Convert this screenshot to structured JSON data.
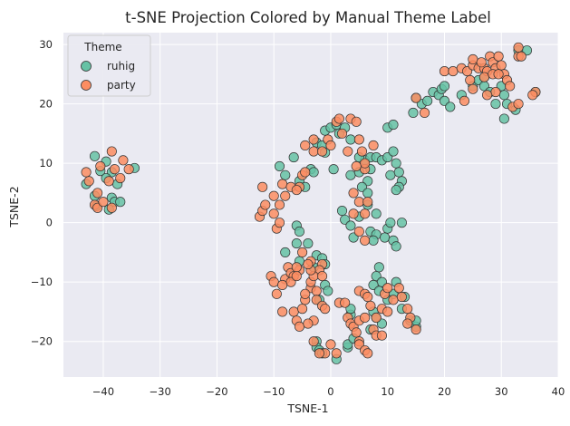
{
  "chart_data": {
    "type": "scatter",
    "title": "t-SNE Projection Colored by Manual Theme Label",
    "xlabel": "TSNE-1",
    "ylabel": "TSNE-2",
    "xlim": [
      -47,
      40
    ],
    "ylim": [
      -26,
      32
    ],
    "xticks": [
      -40,
      -30,
      -20,
      -10,
      0,
      10,
      20,
      30,
      40
    ],
    "yticks": [
      -20,
      -10,
      0,
      10,
      20,
      30
    ],
    "grid": true,
    "legend": {
      "title": "Theme",
      "position": "top-left"
    },
    "series": [
      {
        "name": "ruhig",
        "color": "#66c2a5",
        "points": [
          [
            -41.5,
            11.2
          ],
          [
            -39.5,
            10.3
          ],
          [
            -40.5,
            8.7
          ],
          [
            -38.5,
            8.5
          ],
          [
            -39.5,
            7.5
          ],
          [
            -37.5,
            6.5
          ],
          [
            -34.5,
            9.2
          ],
          [
            -38.5,
            4.2
          ],
          [
            -38,
            3.5
          ],
          [
            -37,
            3.5
          ],
          [
            -41.2,
            2.8
          ],
          [
            -41.5,
            4.5
          ],
          [
            -43,
            6.5
          ],
          [
            -39,
            2.2
          ],
          [
            -9,
            9.5
          ],
          [
            -8,
            8
          ],
          [
            -6.5,
            11
          ],
          [
            -5.5,
            7
          ],
          [
            -4.5,
            6
          ],
          [
            -3.5,
            9
          ],
          [
            -3,
            8.5
          ],
          [
            -2.5,
            13.5
          ],
          [
            -1.5,
            13
          ],
          [
            -1,
            15.5
          ],
          [
            0,
            16
          ],
          [
            1,
            16.5
          ],
          [
            -1,
            11.8
          ],
          [
            0.5,
            9
          ],
          [
            1.5,
            15
          ],
          [
            2.5,
            16
          ],
          [
            3.5,
            14
          ],
          [
            -6,
            -0.5
          ],
          [
            -5.5,
            -1.5
          ],
          [
            -6,
            -3.5
          ],
          [
            -5.5,
            -6.5
          ],
          [
            -4,
            -3.5
          ],
          [
            -8,
            -5
          ],
          [
            -2.5,
            -5.5
          ],
          [
            -1.5,
            -6
          ],
          [
            -1,
            -7
          ],
          [
            -3,
            -7.5
          ],
          [
            -1,
            -10.5
          ],
          [
            -0.5,
            -11.5
          ],
          [
            -2,
            -13
          ],
          [
            -2.5,
            -20
          ],
          [
            -2.5,
            -21
          ],
          [
            -2,
            -21.5
          ],
          [
            -1.5,
            -22
          ],
          [
            1,
            -23
          ],
          [
            3,
            -21
          ],
          [
            3,
            -20.5
          ],
          [
            4,
            -19.5
          ],
          [
            3.5,
            -15.5
          ],
          [
            3.5,
            -14.5
          ],
          [
            2,
            2
          ],
          [
            2.5,
            0.5
          ],
          [
            3.5,
            -0.5
          ],
          [
            4,
            -2.5
          ],
          [
            3.5,
            8
          ],
          [
            5,
            8.5
          ],
          [
            6,
            10.5
          ],
          [
            7,
            9
          ],
          [
            6.5,
            7
          ],
          [
            5.5,
            6
          ],
          [
            6.5,
            5
          ],
          [
            6.5,
            3
          ],
          [
            5,
            1
          ],
          [
            5,
            11
          ],
          [
            7,
            11
          ],
          [
            8,
            11
          ],
          [
            9,
            10.5
          ],
          [
            10,
            11
          ],
          [
            11,
            12
          ],
          [
            10.5,
            8
          ],
          [
            11.5,
            10
          ],
          [
            12,
            8.5
          ],
          [
            12.5,
            7
          ],
          [
            12,
            6
          ],
          [
            11.5,
            5.5
          ],
          [
            10,
            16
          ],
          [
            11,
            16.5
          ],
          [
            8,
            1.5
          ],
          [
            7,
            -1.5
          ],
          [
            8,
            -2
          ],
          [
            7.5,
            -3
          ],
          [
            9.5,
            -2.5
          ],
          [
            10,
            -1
          ],
          [
            10.5,
            0
          ],
          [
            11,
            -3
          ],
          [
            11.5,
            -4
          ],
          [
            12.5,
            0
          ],
          [
            8.5,
            -7.5
          ],
          [
            8,
            -9
          ],
          [
            9,
            -10
          ],
          [
            7.5,
            -10.5
          ],
          [
            8.5,
            -11.5
          ],
          [
            11,
            -12
          ],
          [
            11.5,
            -10
          ],
          [
            13,
            -12.5
          ],
          [
            12.5,
            -14.5
          ],
          [
            14,
            -16.5
          ],
          [
            15,
            -17.5
          ],
          [
            15,
            -16.5
          ],
          [
            10,
            -13
          ],
          [
            7.5,
            -15
          ],
          [
            8,
            -16
          ],
          [
            9,
            -17
          ],
          [
            7,
            -18
          ],
          [
            14.5,
            18.5
          ],
          [
            15,
            21
          ],
          [
            16,
            20
          ],
          [
            17,
            20.5
          ],
          [
            18,
            22
          ],
          [
            19,
            21.5
          ],
          [
            19.5,
            22.5
          ],
          [
            20,
            23
          ],
          [
            20,
            20.5
          ],
          [
            21,
            19.5
          ],
          [
            23,
            21.5
          ],
          [
            25,
            23
          ],
          [
            26,
            24
          ],
          [
            27,
            24.5
          ],
          [
            27,
            23
          ],
          [
            28,
            22
          ],
          [
            29,
            20
          ],
          [
            30.5,
            17.5
          ],
          [
            30.5,
            21.5
          ],
          [
            30,
            23
          ],
          [
            31,
            20
          ],
          [
            32.5,
            19
          ],
          [
            33,
            29
          ],
          [
            34.5,
            29
          ],
          [
            36,
            22
          ]
        ]
      },
      {
        "name": "party",
        "color": "#fc8d62",
        "points": [
          [
            -43,
            8.5
          ],
          [
            -42.5,
            7
          ],
          [
            -40.5,
            9.5
          ],
          [
            -38.5,
            12
          ],
          [
            -38,
            9
          ],
          [
            -36.5,
            10.5
          ],
          [
            -35.5,
            9
          ],
          [
            -37,
            7.5
          ],
          [
            -39,
            7
          ],
          [
            -41,
            5
          ],
          [
            -41.5,
            3
          ],
          [
            -41,
            2.5
          ],
          [
            -40,
            3.5
          ],
          [
            -38.5,
            2.5
          ],
          [
            -12,
            6
          ],
          [
            -10,
            4.5
          ],
          [
            -10,
            1.5
          ],
          [
            -9,
            3
          ],
          [
            -8.5,
            6.5
          ],
          [
            -8,
            4.5
          ],
          [
            -7,
            6
          ],
          [
            -5.5,
            6
          ],
          [
            -6,
            5.5
          ],
          [
            -5,
            8
          ],
          [
            -4.5,
            8.5
          ],
          [
            -3,
            12
          ],
          [
            -4.5,
            13
          ],
          [
            -3,
            14
          ],
          [
            -1.5,
            12
          ],
          [
            -0.5,
            14
          ],
          [
            0,
            13
          ],
          [
            1,
            17
          ],
          [
            1.5,
            17.5
          ],
          [
            2,
            15
          ],
          [
            3,
            12
          ],
          [
            3.5,
            17.5
          ],
          [
            4.5,
            17
          ],
          [
            5,
            14
          ],
          [
            5.5,
            12
          ],
          [
            6,
            9
          ],
          [
            6,
            10
          ],
          [
            4.5,
            9.5
          ],
          [
            4,
            5
          ],
          [
            5,
            3.5
          ],
          [
            4,
            1.5
          ],
          [
            6.5,
            3.5
          ],
          [
            6,
            1.5
          ],
          [
            5,
            -1.5
          ],
          [
            6,
            -3
          ],
          [
            7.5,
            13
          ],
          [
            -12.5,
            1
          ],
          [
            -12,
            2
          ],
          [
            -11.5,
            3
          ],
          [
            -9.5,
            -1
          ],
          [
            -9,
            0
          ],
          [
            -10.5,
            -9
          ],
          [
            -10,
            -10
          ],
          [
            -9.5,
            -12
          ],
          [
            -8,
            -9.5
          ],
          [
            -7.5,
            -7.5
          ],
          [
            -7,
            -8.5
          ],
          [
            -6.5,
            -9
          ],
          [
            -7,
            -10
          ],
          [
            -8.5,
            -10.5
          ],
          [
            -8.5,
            -15
          ],
          [
            -6.5,
            -15
          ],
          [
            -6,
            -16.5
          ],
          [
            -5.5,
            -17.5
          ],
          [
            -5,
            -14.5
          ],
          [
            -4.5,
            -13
          ],
          [
            -3.5,
            -11
          ],
          [
            -3.5,
            -10
          ],
          [
            -4.5,
            -12
          ],
          [
            -2.5,
            -11.5
          ],
          [
            -2.5,
            -13
          ],
          [
            -1.5,
            -14
          ],
          [
            -1,
            -14.5
          ],
          [
            -3,
            -16.5
          ],
          [
            -4,
            -17
          ],
          [
            -1,
            -22
          ],
          [
            -2,
            -22
          ],
          [
            -3,
            -20
          ],
          [
            0,
            -20.5
          ],
          [
            1,
            -22
          ],
          [
            1.5,
            -13.5
          ],
          [
            2.5,
            -13.5
          ],
          [
            3,
            -16
          ],
          [
            3.5,
            -17
          ],
          [
            4,
            -17.5
          ],
          [
            4.5,
            -18.5
          ],
          [
            5,
            -20
          ],
          [
            5,
            -20.5
          ],
          [
            6,
            -21.5
          ],
          [
            5,
            -11.5
          ],
          [
            6,
            -12
          ],
          [
            6.5,
            -12.5
          ],
          [
            7,
            -14
          ],
          [
            8,
            -16
          ],
          [
            7.5,
            -18
          ],
          [
            8,
            -19
          ],
          [
            9,
            -19
          ],
          [
            6.5,
            -22
          ],
          [
            9,
            -14.5
          ],
          [
            9.5,
            -12
          ],
          [
            10,
            -15
          ],
          [
            11,
            -13
          ],
          [
            10,
            -11
          ],
          [
            12,
            -11
          ],
          [
            12.5,
            -12.5
          ],
          [
            13.5,
            -14.5
          ],
          [
            14,
            -16
          ],
          [
            15,
            -18
          ],
          [
            13.5,
            -17
          ],
          [
            5,
            -16.5
          ],
          [
            6,
            -16
          ],
          [
            -1.5,
            -7
          ],
          [
            -2,
            -8
          ],
          [
            -3,
            -9
          ],
          [
            -1.5,
            -9
          ],
          [
            -3.5,
            -8
          ],
          [
            -5.5,
            -8
          ],
          [
            -3.5,
            -6.5
          ],
          [
            -4,
            -7
          ],
          [
            -5,
            -5
          ],
          [
            -6,
            -7.5
          ],
          [
            -6,
            -9
          ],
          [
            15,
            21
          ],
          [
            16.5,
            18.5
          ],
          [
            20,
            25.5
          ],
          [
            21.5,
            25.5
          ],
          [
            23,
            26
          ],
          [
            24,
            25.5
          ],
          [
            24.5,
            24
          ],
          [
            25,
            26.5
          ],
          [
            25,
            27.5
          ],
          [
            26,
            26
          ],
          [
            27,
            26
          ],
          [
            27.5,
            25.5
          ],
          [
            28,
            28
          ],
          [
            28.5,
            27
          ],
          [
            29,
            26
          ],
          [
            29.5,
            28
          ],
          [
            30,
            26.5
          ],
          [
            30.5,
            25
          ],
          [
            31,
            24
          ],
          [
            31.5,
            23
          ],
          [
            29,
            22
          ],
          [
            27.5,
            21.5
          ],
          [
            27,
            24.5
          ],
          [
            26.5,
            27
          ],
          [
            23.5,
            20.5
          ],
          [
            25,
            22.5
          ],
          [
            28.5,
            25
          ],
          [
            29.5,
            25
          ],
          [
            33,
            28
          ],
          [
            33.5,
            28
          ],
          [
            36,
            22
          ],
          [
            35.5,
            21.5
          ],
          [
            32,
            19.5
          ],
          [
            33,
            29.5
          ],
          [
            33,
            20
          ]
        ]
      }
    ]
  }
}
